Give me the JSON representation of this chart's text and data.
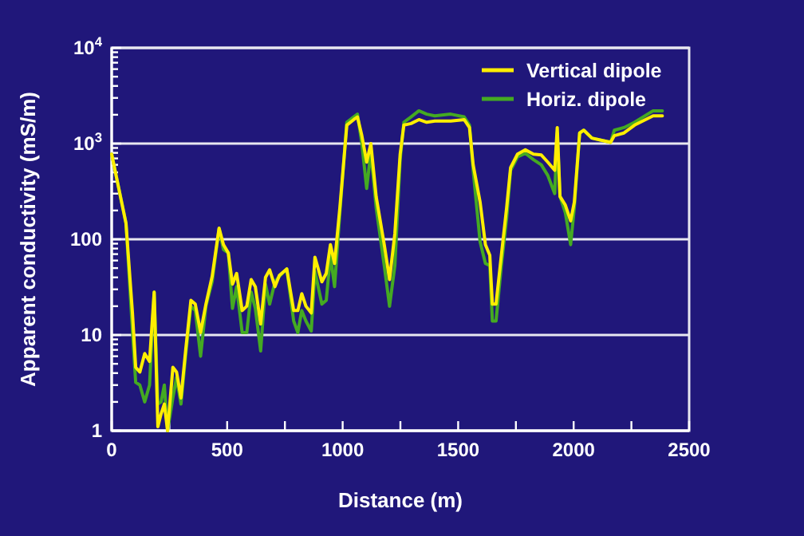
{
  "chart_data": {
    "type": "line",
    "xlabel": "Distance (m)",
    "ylabel": "Apparent conductivity (mS/m)",
    "log": "y",
    "grid": "y",
    "legend": "top right",
    "line_style": "solid",
    "marker": "none",
    "xlim": [
      0,
      2500
    ],
    "xticks": [
      0,
      {
        "value": 250,
        "label": null
      },
      500,
      {
        "value": 750,
        "label": null
      },
      1000,
      {
        "value": 1250,
        "label": null
      },
      1500,
      {
        "value": 1750,
        "label": null
      },
      2000,
      {
        "value": 2250,
        "label": null
      },
      2500
    ],
    "ylim": [
      1,
      10000
    ],
    "yticks": [
      1,
      {
        "value": 2,
        "label": null
      },
      {
        "value": 3,
        "label": null
      },
      {
        "value": 4,
        "label": null
      },
      {
        "value": 5,
        "label": null
      },
      {
        "value": 6,
        "label": null
      },
      {
        "value": 7,
        "label": null
      },
      {
        "value": 8,
        "label": null
      },
      {
        "value": 9,
        "label": null
      },
      10,
      {
        "value": 20,
        "label": null
      },
      {
        "value": 30,
        "label": null
      },
      {
        "value": 40,
        "label": null
      },
      {
        "value": 50,
        "label": null
      },
      {
        "value": 60,
        "label": null
      },
      {
        "value": 70,
        "label": null
      },
      {
        "value": 80,
        "label": null
      },
      {
        "value": 90,
        "label": null
      },
      100,
      {
        "value": 200,
        "label": null
      },
      {
        "value": 300,
        "label": null
      },
      {
        "value": 400,
        "label": null
      },
      {
        "value": 500,
        "label": null
      },
      {
        "value": 600,
        "label": null
      },
      {
        "value": 700,
        "label": null
      },
      {
        "value": 800,
        "label": null
      },
      {
        "value": 900,
        "label": null
      },
      {
        "value": 1000,
        "label": "10$^{3}$"
      },
      {
        "value": 2000,
        "label": null
      },
      {
        "value": 3000,
        "label": null
      },
      {
        "value": 4000,
        "label": null
      },
      {
        "value": 5000,
        "label": null
      },
      {
        "value": 6000,
        "label": null
      },
      {
        "value": 7000,
        "label": null
      },
      {
        "value": 8000,
        "label": null
      },
      {
        "value": 9000,
        "label": null
      },
      {
        "value": 10000,
        "label": "10$^{4}$"
      }
    ],
    "x": [
      0,
      62,
      90,
      104,
      122,
      143,
      164,
      184,
      200,
      214,
      228,
      242,
      265,
      281,
      300,
      320,
      343,
      362,
      385,
      408,
      435,
      465,
      484,
      505,
      523,
      541,
      565,
      585,
      604,
      622,
      645,
      666,
      684,
      707,
      726,
      758,
      788,
      806,
      823,
      841,
      864,
      880,
      910,
      929,
      947,
      965,
      988,
      1018,
      1048,
      1064,
      1083,
      1104,
      1122,
      1145,
      1180,
      1203,
      1226,
      1249,
      1265,
      1296,
      1330,
      1364,
      1399,
      1468,
      1526,
      1549,
      1565,
      1595,
      1618,
      1637,
      1648,
      1664,
      1687,
      1710,
      1727,
      1757,
      1791,
      1826,
      1860,
      1888,
      1918,
      1929,
      1941,
      1964,
      1987,
      2003,
      2026,
      2044,
      2079,
      2160,
      2176,
      2218,
      2264,
      2344,
      2384
    ],
    "series": [
      {
        "name": "Horiz. dipole",
        "color": "#44aa22",
        "values": [
          776,
          147,
          11,
          3.2,
          3,
          2,
          3,
          28,
          1.9,
          2,
          3,
          1,
          2.2,
          3.6,
          1.9,
          6,
          20,
          18,
          6,
          20,
          36,
          129,
          78,
          72,
          19,
          32,
          10.6,
          10.6,
          28,
          19,
          6.8,
          34,
          21,
          36,
          41,
          49,
          14,
          10.6,
          18,
          14,
          11,
          46,
          21,
          23,
          68,
          32,
          190,
          1670,
          1900,
          2030,
          1000,
          340,
          820,
          215,
          53,
          20,
          53,
          680,
          1670,
          1900,
          2200,
          2030,
          1950,
          2030,
          1900,
          1560,
          525,
          94,
          56,
          53,
          14,
          14,
          53,
          167,
          525,
          725,
          790,
          680,
          600,
          465,
          300,
          1290,
          280,
          190,
          88,
          215,
          1290,
          1380,
          1140,
          1030,
          1380,
          1470,
          1670,
          2200,
          2200
        ]
      },
      {
        "name": "Vertical dipole",
        "color": "#ffee00",
        "values": [
          776,
          147,
          17,
          4.6,
          4.1,
          6.4,
          5.3,
          28,
          1.1,
          1.5,
          1.9,
          1,
          4.6,
          4.1,
          2.2,
          6.8,
          23,
          21,
          10.6,
          21,
          41,
          131,
          88,
          72,
          34,
          44,
          18,
          20,
          38,
          32,
          13,
          40,
          48,
          32,
          42,
          49,
          18,
          18,
          27,
          20,
          17,
          65,
          36,
          44,
          88,
          56,
          215,
          1560,
          1780,
          1900,
          1210,
          640,
          1000,
          280,
          88,
          38,
          115,
          776,
          1560,
          1620,
          1780,
          1670,
          1720,
          1720,
          1780,
          1470,
          600,
          245,
          88,
          68,
          21,
          21,
          68,
          215,
          560,
          776,
          860,
          776,
          760,
          640,
          525,
          1470,
          280,
          228,
          156,
          245,
          1290,
          1380,
          1140,
          1030,
          1210,
          1290,
          1560,
          1950,
          1950
        ]
      }
    ]
  }
}
